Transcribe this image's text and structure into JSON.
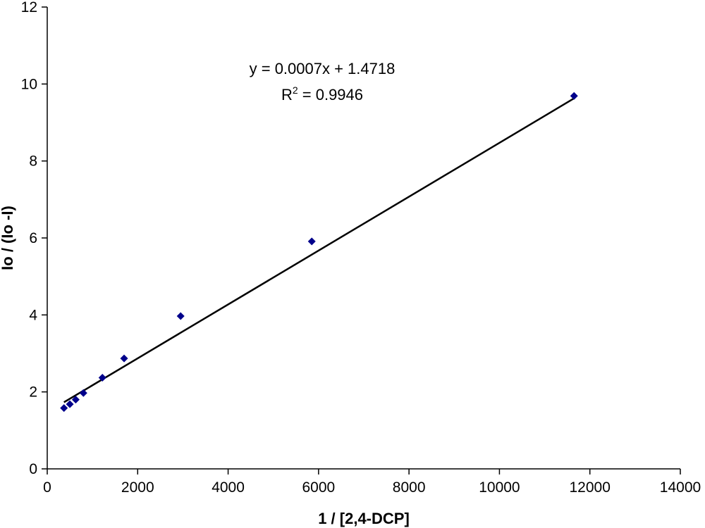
{
  "chart_data": {
    "type": "scatter",
    "title": "",
    "xlabel": "1 / [2,4-DCP]",
    "ylabel": "Io / (Io -I)",
    "xlim": [
      0,
      14000
    ],
    "ylim": [
      0,
      12
    ],
    "x_ticks": [
      0,
      2000,
      4000,
      6000,
      8000,
      10000,
      12000,
      14000
    ],
    "y_ticks": [
      0,
      2,
      4,
      6,
      8,
      10,
      12
    ],
    "grid": false,
    "legend": "none",
    "series": [
      {
        "marker": "diamond",
        "color": "#00008B",
        "x": [
          370,
          500,
          630,
          800,
          1220,
          1700,
          2950,
          5850,
          11650
        ],
        "y": [
          1.58,
          1.68,
          1.8,
          1.97,
          2.37,
          2.87,
          3.97,
          5.91,
          9.69
        ]
      }
    ],
    "trendline": {
      "type": "linear",
      "slope": 0.0007,
      "intercept": 1.4718,
      "x_range": [
        370,
        11650
      ],
      "color": "#000000"
    },
    "annotations": {
      "equation": "y = 0.0007x + 1.4718",
      "r2_prefix": "R",
      "r2_sup": "2",
      "r2_value": " = 0.9946"
    }
  }
}
